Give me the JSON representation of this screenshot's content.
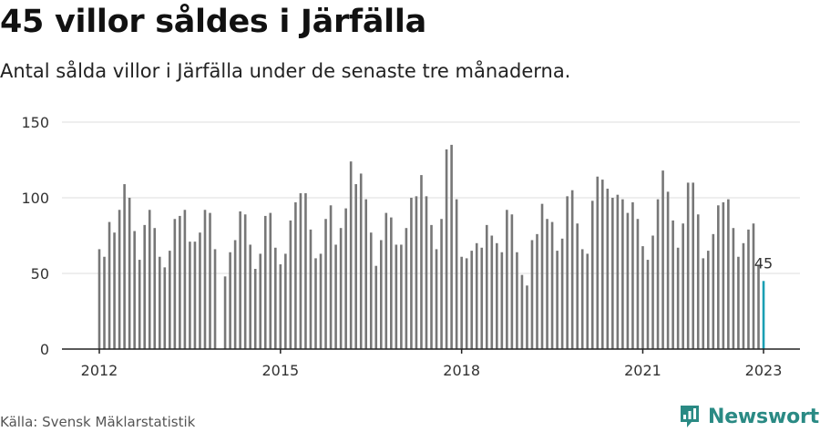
{
  "header": {
    "title": "45 villor såldes i Järfälla",
    "subtitle": "Antal sålda villor i Järfälla under de senaste tre månaderna."
  },
  "footer": {
    "source": "Källa: Svensk Mäklarstatistik",
    "brand": "Newsworthy"
  },
  "colors": {
    "bar": "#777777",
    "highlight": "#1a9fb3",
    "grid": "#dddddd",
    "axis": "#222222",
    "brand": "#2a8a84"
  },
  "icons": {
    "brand": "newsworthy-logo-icon"
  },
  "chart_data": {
    "type": "bar",
    "x_start": "2012-01",
    "x_end": "2023-01",
    "x_tick_labels": [
      "2012",
      "2015",
      "2018",
      "2021",
      "2023"
    ],
    "ylim": [
      0,
      150
    ],
    "y_ticks": [
      0,
      50,
      100,
      150
    ],
    "grid": true,
    "highlight_last": true,
    "annotation": "45",
    "values": [
      66,
      61,
      84,
      77,
      92,
      109,
      100,
      78,
      59,
      82,
      92,
      80,
      61,
      54,
      65,
      86,
      88,
      92,
      71,
      71,
      77,
      92,
      90,
      66,
      null,
      48,
      64,
      72,
      91,
      89,
      69,
      53,
      63,
      88,
      90,
      67,
      56,
      63,
      85,
      97,
      103,
      103,
      79,
      60,
      63,
      86,
      95,
      69,
      80,
      93,
      124,
      109,
      116,
      99,
      77,
      55,
      72,
      90,
      87,
      69,
      69,
      80,
      100,
      101,
      115,
      101,
      82,
      66,
      86,
      132,
      135,
      99,
      61,
      60,
      65,
      70,
      67,
      82,
      75,
      70,
      64,
      92,
      89,
      64,
      49,
      42,
      72,
      76,
      96,
      86,
      84,
      65,
      73,
      101,
      105,
      83,
      66,
      63,
      98,
      114,
      112,
      106,
      100,
      102,
      99,
      90,
      97,
      86,
      68,
      59,
      75,
      99,
      118,
      104,
      85,
      67,
      83,
      110,
      110,
      89,
      60,
      65,
      76,
      95,
      97,
      99,
      80,
      61,
      70,
      79,
      83,
      55,
      45
    ]
  }
}
